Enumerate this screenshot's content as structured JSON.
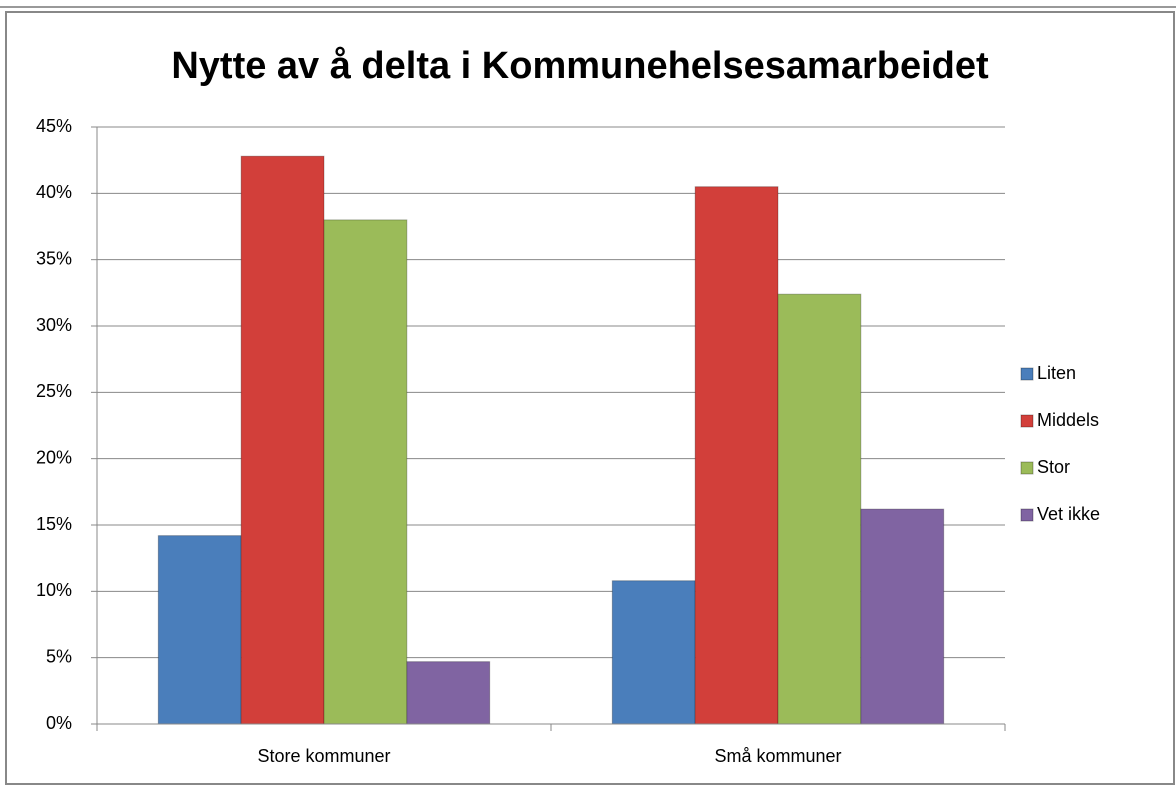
{
  "chart_data": {
    "type": "bar",
    "title": "Nytte av å delta i Kommunehelsesamarbeidet",
    "categories": [
      "Store kommuner",
      "Små kommuner"
    ],
    "series": [
      {
        "name": "Liten",
        "color": "#4a7ebb",
        "values": [
          14.2,
          10.8
        ]
      },
      {
        "name": "Middels",
        "color": "#d23f3a",
        "values": [
          42.8,
          40.5
        ]
      },
      {
        "name": "Stor",
        "color": "#9bbb59",
        "values": [
          38.0,
          32.4
        ]
      },
      {
        "name": "Vet ikke",
        "color": "#8064a2",
        "values": [
          4.7,
          16.2
        ]
      }
    ],
    "ylim": [
      0,
      45
    ],
    "yticks": [
      {
        "value": 0,
        "label": "0%"
      },
      {
        "value": 5,
        "label": "5%"
      },
      {
        "value": 10,
        "label": "10%"
      },
      {
        "value": 15,
        "label": "15%"
      },
      {
        "value": 20,
        "label": "20%"
      },
      {
        "value": 25,
        "label": "25%"
      },
      {
        "value": 30,
        "label": "30%"
      },
      {
        "value": 35,
        "label": "35%"
      },
      {
        "value": 40,
        "label": "40%"
      },
      {
        "value": 45,
        "label": "45%"
      }
    ],
    "grid": true,
    "legend": "right"
  }
}
